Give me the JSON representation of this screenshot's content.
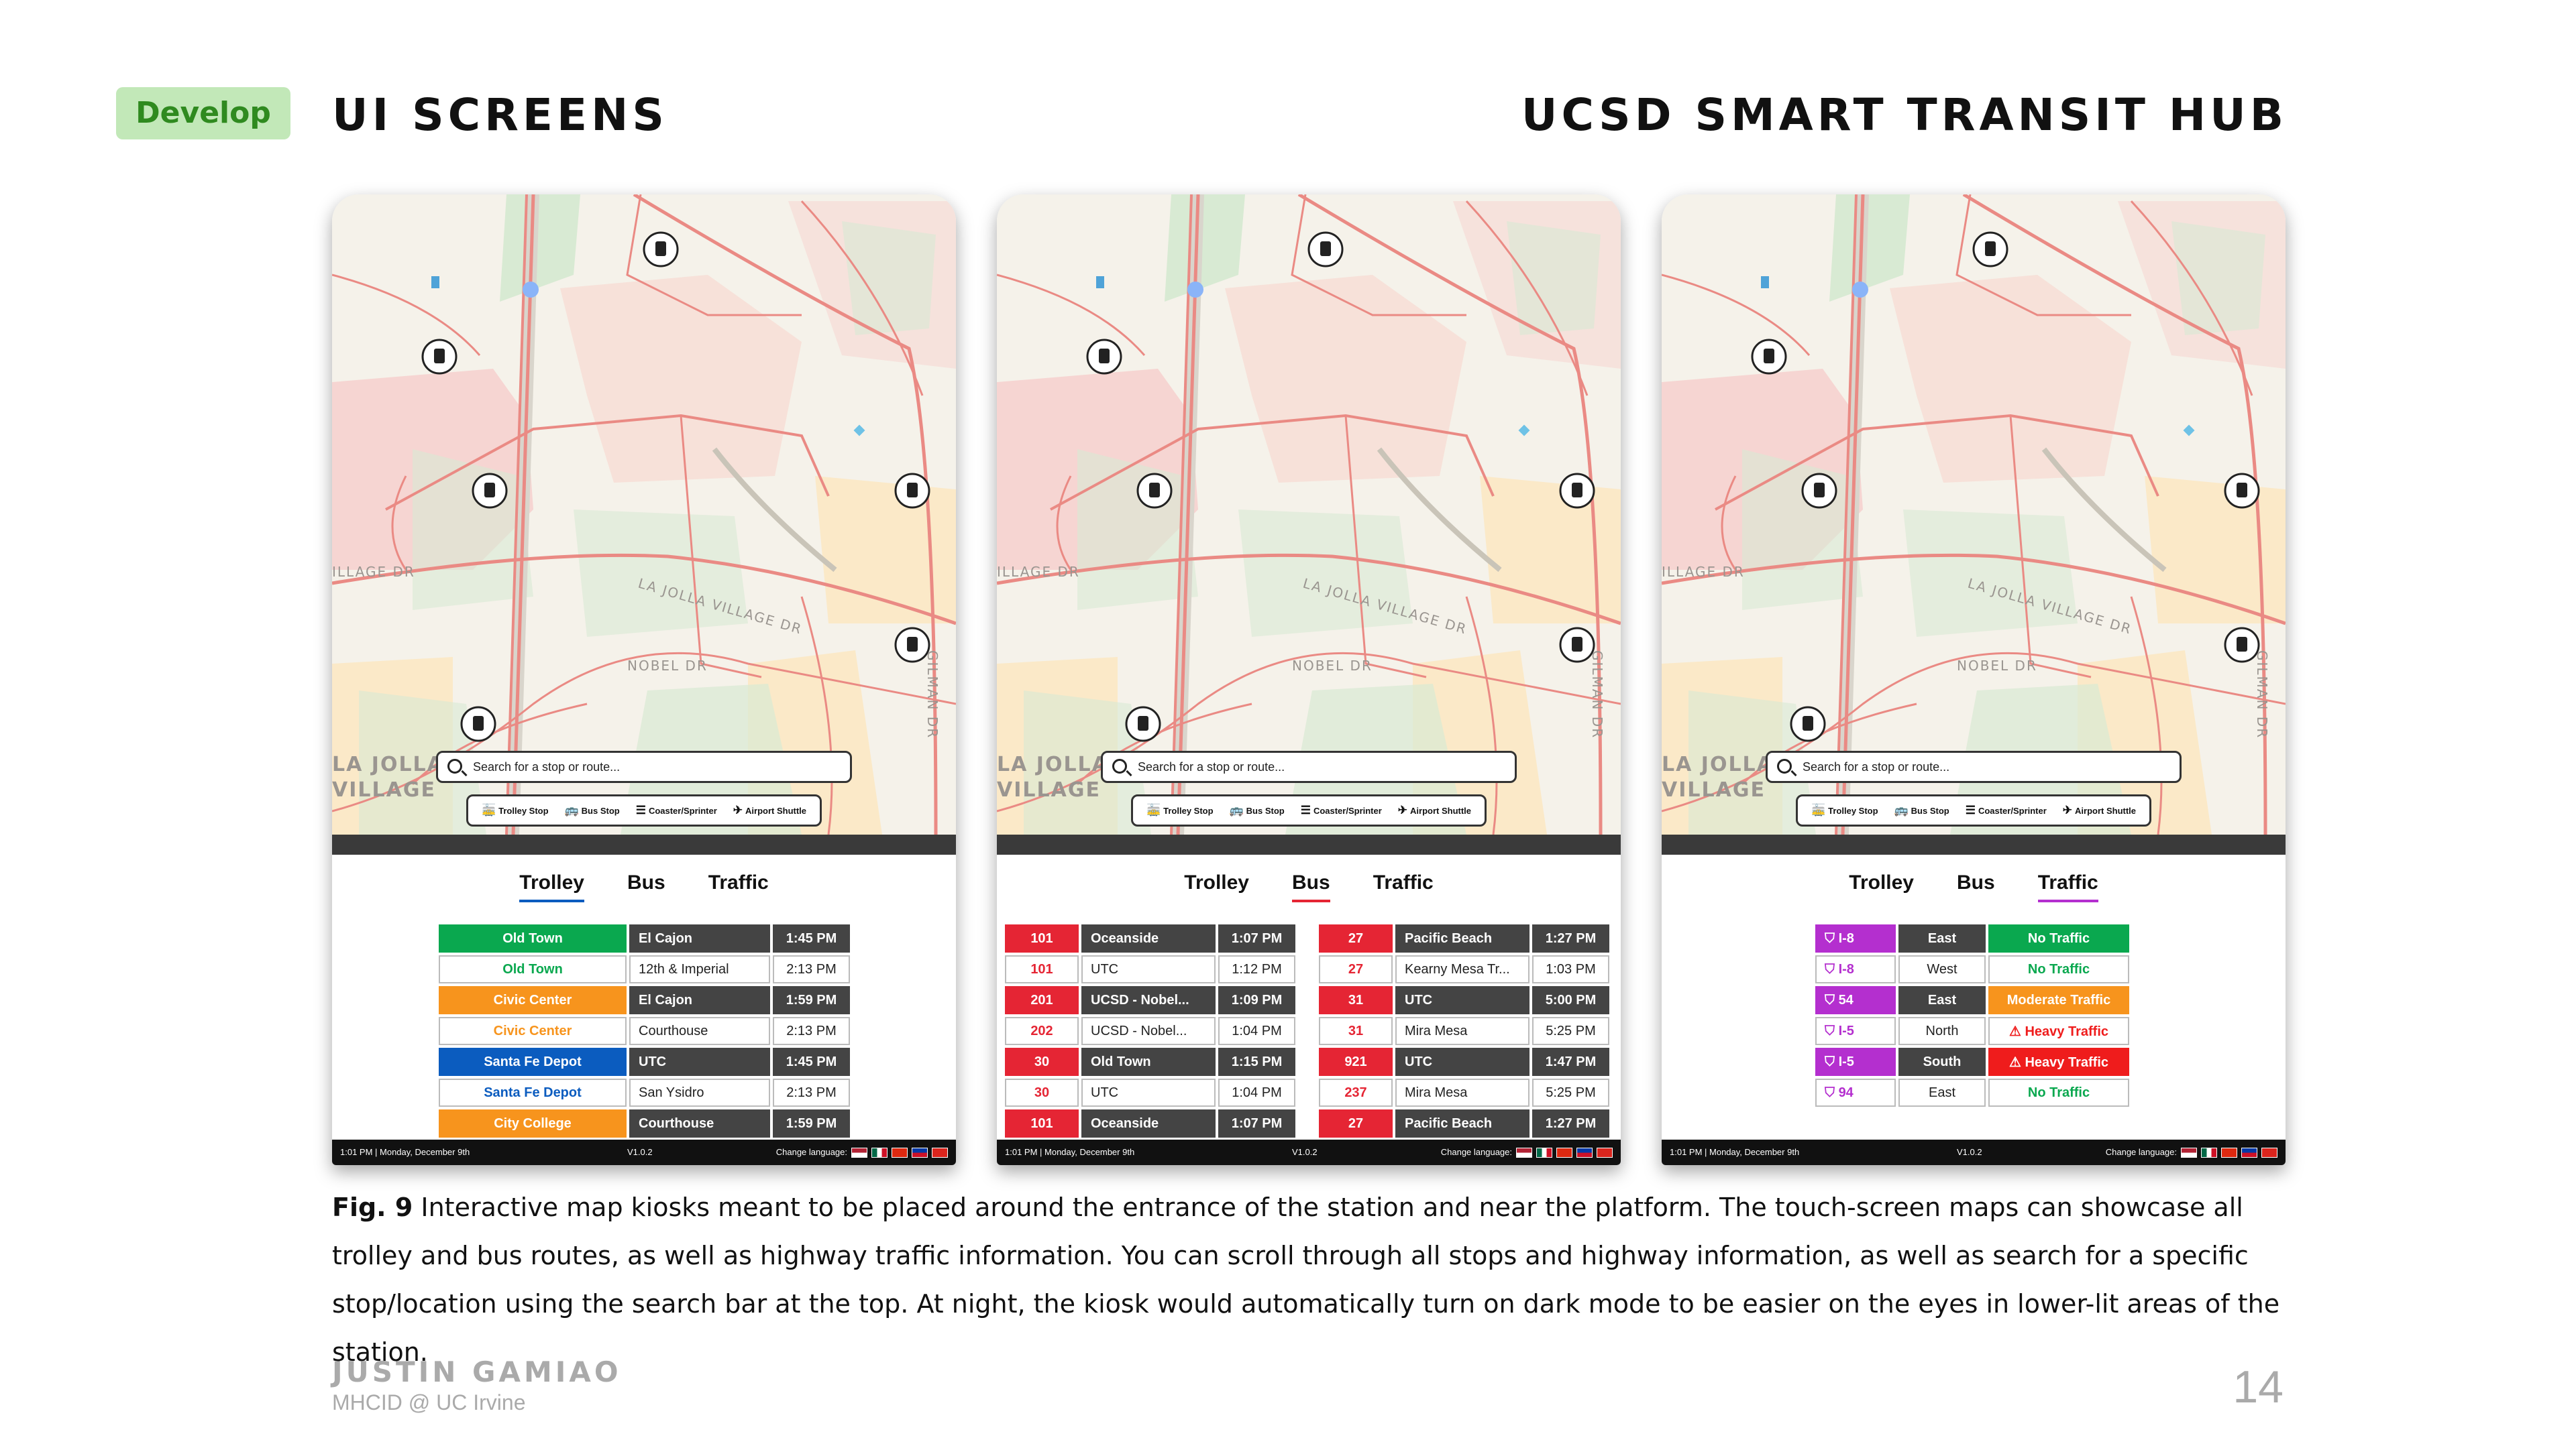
{
  "header": {
    "badge": "Develop",
    "section_title": "UI SCREENS",
    "project_title": "UCSD SMART TRANSIT HUB"
  },
  "map": {
    "street_labels": [
      "ILLAGE DR",
      "LA JOLLA VILLAGE DR",
      "NOBEL DR",
      "GILMAN DR",
      "LA JOLLA",
      "VILLAGE"
    ],
    "search_placeholder": "Search for a stop or route...",
    "legend": [
      "Trolley Stop",
      "Bus Stop",
      "Coaster/Sprinter",
      "Airport Shuttle"
    ]
  },
  "tabs": [
    "Trolley",
    "Bus",
    "Traffic"
  ],
  "colors": {
    "green": "#0aa84f",
    "orange": "#f7941d",
    "blue": "#0b5cbf",
    "red": "#e52534",
    "purple": "#b42fcf",
    "traffic_red": "#ef1c1c"
  },
  "kiosks": [
    {
      "active_tab": "Trolley",
      "rows": [
        {
          "route": "Old Town",
          "dest": "El Cajon",
          "time": "1:45 PM",
          "color": "#0aa84f",
          "filled": true
        },
        {
          "route": "Old Town",
          "dest": "12th & Imperial",
          "time": "2:13 PM",
          "color": "#0aa84f",
          "filled": false
        },
        {
          "route": "Civic Center",
          "dest": "El Cajon",
          "time": "1:59 PM",
          "color": "#f7941d",
          "filled": true
        },
        {
          "route": "Civic Center",
          "dest": "Courthouse",
          "time": "2:13 PM",
          "color": "#f7941d",
          "filled": false
        },
        {
          "route": "Santa Fe Depot",
          "dest": "UTC",
          "time": "1:45 PM",
          "color": "#0b5cbf",
          "filled": true
        },
        {
          "route": "Santa Fe Depot",
          "dest": "San Ysidro",
          "time": "2:13 PM",
          "color": "#0b5cbf",
          "filled": false
        },
        {
          "route": "City College",
          "dest": "Courthouse",
          "time": "1:59 PM",
          "color": "#f7941d",
          "filled": true
        }
      ]
    },
    {
      "active_tab": "Bus",
      "left_rows": [
        {
          "route": "101",
          "dest": "Oceanside",
          "time": "1:07 PM",
          "filled": true
        },
        {
          "route": "101",
          "dest": "UTC",
          "time": "1:12 PM",
          "filled": false
        },
        {
          "route": "201",
          "dest": "UCSD - Nobel...",
          "time": "1:09 PM",
          "filled": true
        },
        {
          "route": "202",
          "dest": "UCSD - Nobel...",
          "time": "1:04 PM",
          "filled": false
        },
        {
          "route": "30",
          "dest": "Old Town",
          "time": "1:15 PM",
          "filled": true
        },
        {
          "route": "30",
          "dest": "UTC",
          "time": "1:04 PM",
          "filled": false
        },
        {
          "route": "101",
          "dest": "Oceanside",
          "time": "1:07 PM",
          "filled": true
        }
      ],
      "right_rows": [
        {
          "route": "27",
          "dest": "Pacific Beach",
          "time": "1:27 PM",
          "filled": true
        },
        {
          "route": "27",
          "dest": "Kearny Mesa Tr...",
          "time": "1:03 PM",
          "filled": false
        },
        {
          "route": "31",
          "dest": "UTC",
          "time": "5:00 PM",
          "filled": true
        },
        {
          "route": "31",
          "dest": "Mira Mesa",
          "time": "5:25 PM",
          "filled": false
        },
        {
          "route": "921",
          "dest": "UTC",
          "time": "1:47 PM",
          "filled": true
        },
        {
          "route": "237",
          "dest": "Mira Mesa",
          "time": "5:25 PM",
          "filled": false
        },
        {
          "route": "27",
          "dest": "Pacific Beach",
          "time": "1:27 PM",
          "filled": true
        }
      ]
    },
    {
      "active_tab": "Traffic",
      "rows": [
        {
          "road": "I-8",
          "dir": "East",
          "status": "No Traffic",
          "level": "none",
          "filled": true
        },
        {
          "road": "I-8",
          "dir": "West",
          "status": "No Traffic",
          "level": "none",
          "filled": false
        },
        {
          "road": "54",
          "dir": "East",
          "status": "Moderate Traffic",
          "level": "moderate",
          "filled": true
        },
        {
          "road": "I-5",
          "dir": "North",
          "status": "Heavy Traffic",
          "level": "heavy",
          "filled": false
        },
        {
          "road": "I-5",
          "dir": "South",
          "status": "Heavy Traffic",
          "level": "heavy",
          "filled": true
        },
        {
          "road": "94",
          "dir": "East",
          "status": "No Traffic",
          "level": "none",
          "filled": false
        }
      ]
    }
  ],
  "footer": {
    "datetime": "1:01 PM | Monday, December 9th",
    "version": "V1.0.2",
    "change_language": "Change language:"
  },
  "caption": {
    "fig_label": "Fig. 9",
    "text": " Interactive map kiosks meant to be placed around the entrance of the station and near the platform. The touch-screen maps can showcase all trolley and bus routes, as well as highway traffic information. You can scroll through all stops and highway information, as well as search for a specific stop/location using the search bar at the top. At night, the kiosk would automatically turn on dark mode to be easier on the eyes in lower-lit areas of the station."
  },
  "author": {
    "name": "JUSTIN GAMIAO",
    "affiliation": "MHCID @ UC Irvine"
  },
  "page_number": "14"
}
